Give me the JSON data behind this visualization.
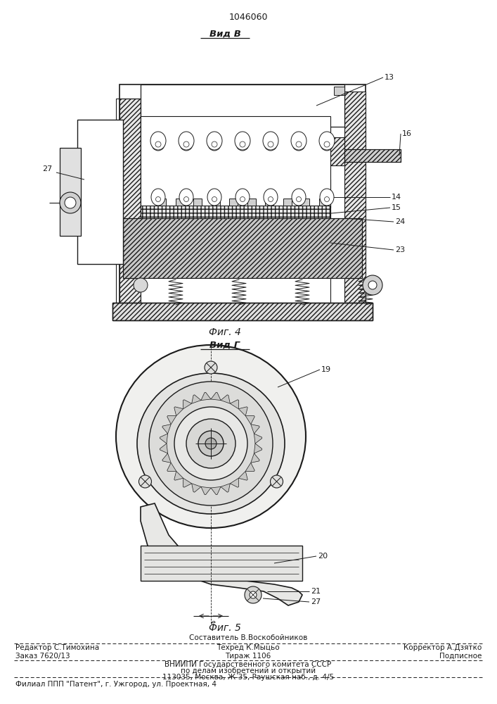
{
  "patent_number": "1046060",
  "fig4_label": "Фиг. 4",
  "fig5_label": "Фиг. 5",
  "vid_b_label": "Вид В",
  "vid_g_label": "Вид Г",
  "footer": {
    "line1_center": "Составитель В.Воскобойников",
    "line1_left": "Редактор С.Тимохина",
    "line2_center": "Техред К.Мыцьо",
    "line1_right": "Корректор А.Дзятко",
    "line3_left": "Заказ 7620/13",
    "line3_center": "Тираж 1106",
    "line3_right": "Подписное",
    "line4": "ВНИИПИ Государственного комитета СССР",
    "line5": "по делам изобретений и открытий",
    "line6": "113035, Москва, Ж-35, Раушская наб., д. 4/5",
    "line7": "Филиал ППП \"Патент\", г. Ужгород, ул. Проектная, 4"
  },
  "bg_color": "#ffffff",
  "line_color": "#1a1a1a"
}
